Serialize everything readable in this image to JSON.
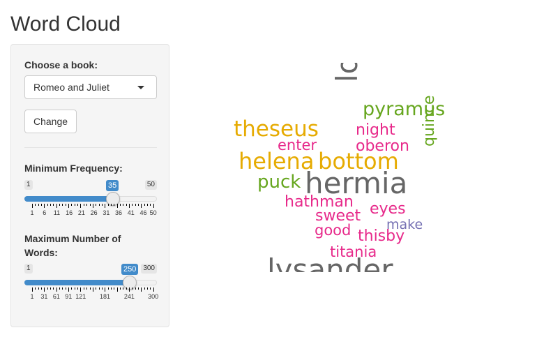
{
  "page": {
    "title": "Word Cloud"
  },
  "sidebar": {
    "book_label": "Choose a book:",
    "book_selected": "Romeo and Juliet",
    "change_button": "Change",
    "min_freq": {
      "label": "Minimum Frequency:",
      "min": "1",
      "max": "50",
      "value": "35",
      "ticks": [
        "1",
        "6",
        "11",
        "16",
        "21",
        "26",
        "31",
        "36",
        "41",
        "46",
        "50"
      ]
    },
    "max_words": {
      "label_line1": "Maximum Number of",
      "label_line2": "Words:",
      "min": "1",
      "max": "300",
      "value": "250",
      "ticks": [
        "1",
        "31",
        "61",
        "91",
        "121",
        "181",
        "241",
        "300"
      ]
    }
  },
  "cloud": {
    "colors": {
      "gray": "#666666",
      "gold": "#e6ab02",
      "green": "#66a61e",
      "pink": "#e7298a",
      "purple": "#7570b3"
    },
    "words": [
      {
        "text": "love",
        "color": "gray"
      },
      {
        "text": "pyramus",
        "color": "green"
      },
      {
        "text": "theseus",
        "color": "gold"
      },
      {
        "text": "night",
        "color": "pink"
      },
      {
        "text": "enter",
        "color": "pink"
      },
      {
        "text": "oberon",
        "color": "pink"
      },
      {
        "text": "helena",
        "color": "gold"
      },
      {
        "text": "bottom",
        "color": "gold"
      },
      {
        "text": "quince",
        "color": "green"
      },
      {
        "text": "puck",
        "color": "green"
      },
      {
        "text": "hermia",
        "color": "gray"
      },
      {
        "text": "hathman",
        "color": "pink"
      },
      {
        "text": "eyes",
        "color": "pink"
      },
      {
        "text": "sweet",
        "color": "pink"
      },
      {
        "text": "make",
        "color": "purple"
      },
      {
        "text": "good",
        "color": "pink"
      },
      {
        "text": "thisby",
        "color": "pink"
      },
      {
        "text": "titania",
        "color": "pink"
      },
      {
        "text": "lysander",
        "color": "gray"
      }
    ]
  }
}
